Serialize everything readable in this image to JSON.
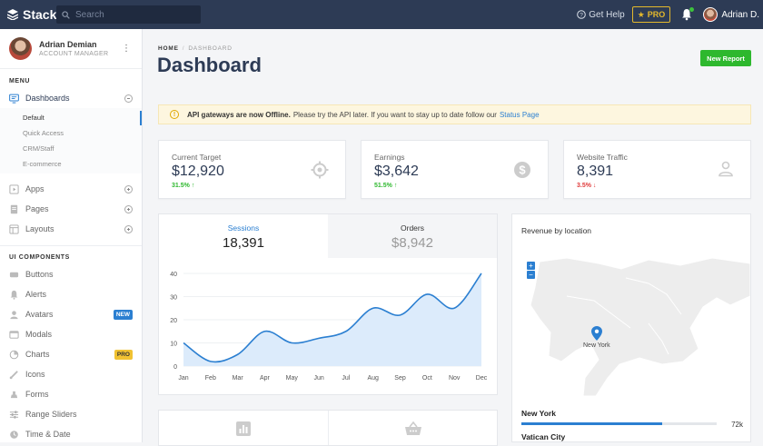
{
  "topbar": {
    "brand": "Stack",
    "search_placeholder": "Search",
    "help_label": "Get Help",
    "pro_label": "PRO",
    "user_name": "Adrian D."
  },
  "sidebar": {
    "profile": {
      "name": "Adrian Demian",
      "role": "ACCOUNT MANAGER"
    },
    "menu_label": "MENU",
    "dashboards_label": "Dashboards",
    "dashboard_subitems": [
      "Default",
      "Quick Access",
      "CRM/Staff",
      "E-commerce"
    ],
    "menu_items": [
      "Apps",
      "Pages",
      "Layouts"
    ],
    "ui_label": "UI COMPONENTS",
    "ui_items": [
      "Buttons",
      "Alerts",
      "Avatars",
      "Modals",
      "Charts",
      "Icons",
      "Forms",
      "Range Sliders",
      "Time & Date"
    ],
    "badges": {
      "avatars": "NEW",
      "charts": "PRO"
    }
  },
  "header": {
    "crumb_home": "HOME",
    "crumb_current": "DASHBOARD",
    "title": "Dashboard",
    "new_report": "New Report"
  },
  "alert": {
    "bold": "API gateways are now Offline.",
    "text": "Please try the API later. If you want to stay up to date follow our",
    "link": "Status Page"
  },
  "stats": [
    {
      "label": "Current Target",
      "value": "$12,920",
      "change": "31.5%",
      "direction": "up",
      "icon": "target-icon"
    },
    {
      "label": "Earnings",
      "value": "$3,642",
      "change": "51.5%",
      "direction": "up",
      "icon": "dollar-icon"
    },
    {
      "label": "Website Traffic",
      "value": "8,391",
      "change": "3.5%",
      "direction": "down",
      "icon": "user-icon"
    }
  ],
  "tabs": [
    {
      "label": "Sessions",
      "value": "18,391"
    },
    {
      "label": "Orders",
      "value": "$8,942"
    }
  ],
  "chart_data": {
    "type": "area",
    "categories": [
      "Jan",
      "Feb",
      "Mar",
      "Apr",
      "May",
      "Jun",
      "Jul",
      "Aug",
      "Sep",
      "Oct",
      "Nov",
      "Dec"
    ],
    "series": [
      {
        "values": [
          10,
          2,
          5,
          15,
          10,
          12,
          15,
          25,
          22,
          31,
          25,
          40
        ]
      }
    ],
    "yticks": [
      0,
      10,
      20,
      30,
      40
    ],
    "ylim": [
      0,
      40
    ],
    "grid": true,
    "color": "#2b7fd1",
    "fill": "#dcebfb"
  },
  "map": {
    "title": "Revenue by location",
    "zoom_in": "+",
    "zoom_out": "−",
    "marker_label": "New York",
    "locations": [
      {
        "name": "New York",
        "value": "72k",
        "fraction": 0.72
      },
      {
        "name": "Vatican City"
      }
    ]
  }
}
